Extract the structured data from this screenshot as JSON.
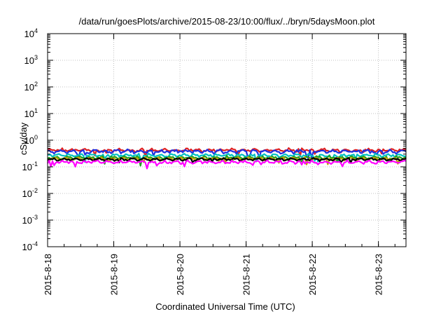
{
  "chart_data": {
    "type": "line",
    "title": "/data/run/goesPlots/archive/2015-08-23/10:00/flux/../bryn/5daysMoon.plot",
    "xlabel": "Coordinated Universal Time (UTC)",
    "ylabel": "cSv/day",
    "yscale": "log",
    "ylim": [
      0.0001,
      10000
    ],
    "xlim": [
      "2015-08-18 00:00",
      "2015-08-23 10:00"
    ],
    "grid": true,
    "x_ticks": [
      "2015-8-18",
      "2015-8-19",
      "2015-8-20",
      "2015-8-21",
      "2015-8-22",
      "2015-8-23"
    ],
    "y_ticks": [
      {
        "base": "10",
        "exp": "-4"
      },
      {
        "base": "10",
        "exp": "-3"
      },
      {
        "base": "10",
        "exp": "-2"
      },
      {
        "base": "10",
        "exp": "-1"
      },
      {
        "base": "10",
        "exp": "0"
      },
      {
        "base": "10",
        "exp": "1"
      },
      {
        "base": "10",
        "exp": "2"
      },
      {
        "base": "10",
        "exp": "3"
      },
      {
        "base": "10",
        "exp": "4"
      }
    ],
    "series": [
      {
        "color": "#e02020",
        "level": 0.42,
        "spread": 0.18
      },
      {
        "color": "#2030e0",
        "level": 0.38,
        "spread": 0.18
      },
      {
        "color": "#00c0c0",
        "level": 0.27,
        "spread": 0.12
      },
      {
        "color": "#20a020",
        "level": 0.22,
        "spread": 0.1
      },
      {
        "color": "#c0a000",
        "level": 0.2,
        "spread": 0.1
      },
      {
        "color": "#000000",
        "level": 0.19,
        "spread": 0.08
      },
      {
        "color": "#ff00ff",
        "level": 0.15,
        "spread": 0.14
      }
    ]
  }
}
